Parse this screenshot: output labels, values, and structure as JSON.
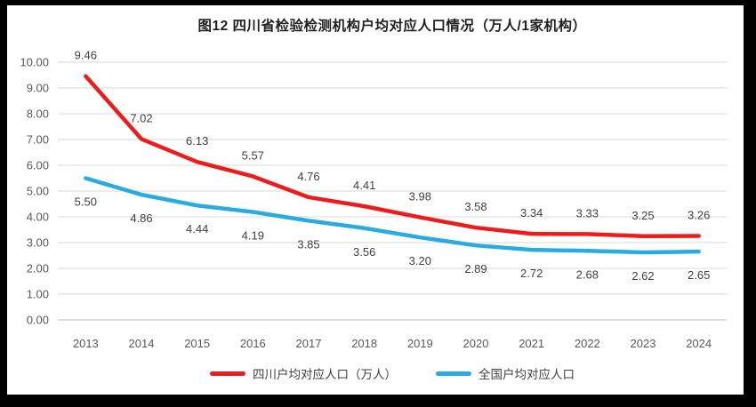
{
  "frame": {
    "border_color": "#000000",
    "panel_background": "#ffffff"
  },
  "chart_data": {
    "type": "line",
    "title": "图12 四川省检验检测机构户均对应人口情况（万人/1家机构）",
    "categories": [
      "2013",
      "2014",
      "2015",
      "2016",
      "2017",
      "2018",
      "2019",
      "2020",
      "2021",
      "2022",
      "2023",
      "2024"
    ],
    "series": [
      {
        "name": "四川户均对应人口（万人）",
        "color": "#ED1C1C",
        "label_position": "above",
        "values": [
          9.46,
          7.02,
          6.13,
          5.57,
          4.76,
          4.41,
          3.98,
          3.58,
          3.34,
          3.33,
          3.25,
          3.26
        ]
      },
      {
        "name": "全国户均对应人口",
        "color": "#29ABE2",
        "label_position": "below",
        "values": [
          5.5,
          4.86,
          4.44,
          4.19,
          3.85,
          3.56,
          3.2,
          2.89,
          2.72,
          2.68,
          2.62,
          2.65
        ]
      }
    ],
    "ylim": [
      0,
      10
    ],
    "ytick_step": 1,
    "ytick_decimals": 2,
    "grid": true,
    "legend_position": "bottom",
    "axis_label_color": "#595959",
    "gridline_color": "#D9D9D9",
    "baseline_color": "#BFBFBF",
    "data_label_color": "#404040"
  }
}
